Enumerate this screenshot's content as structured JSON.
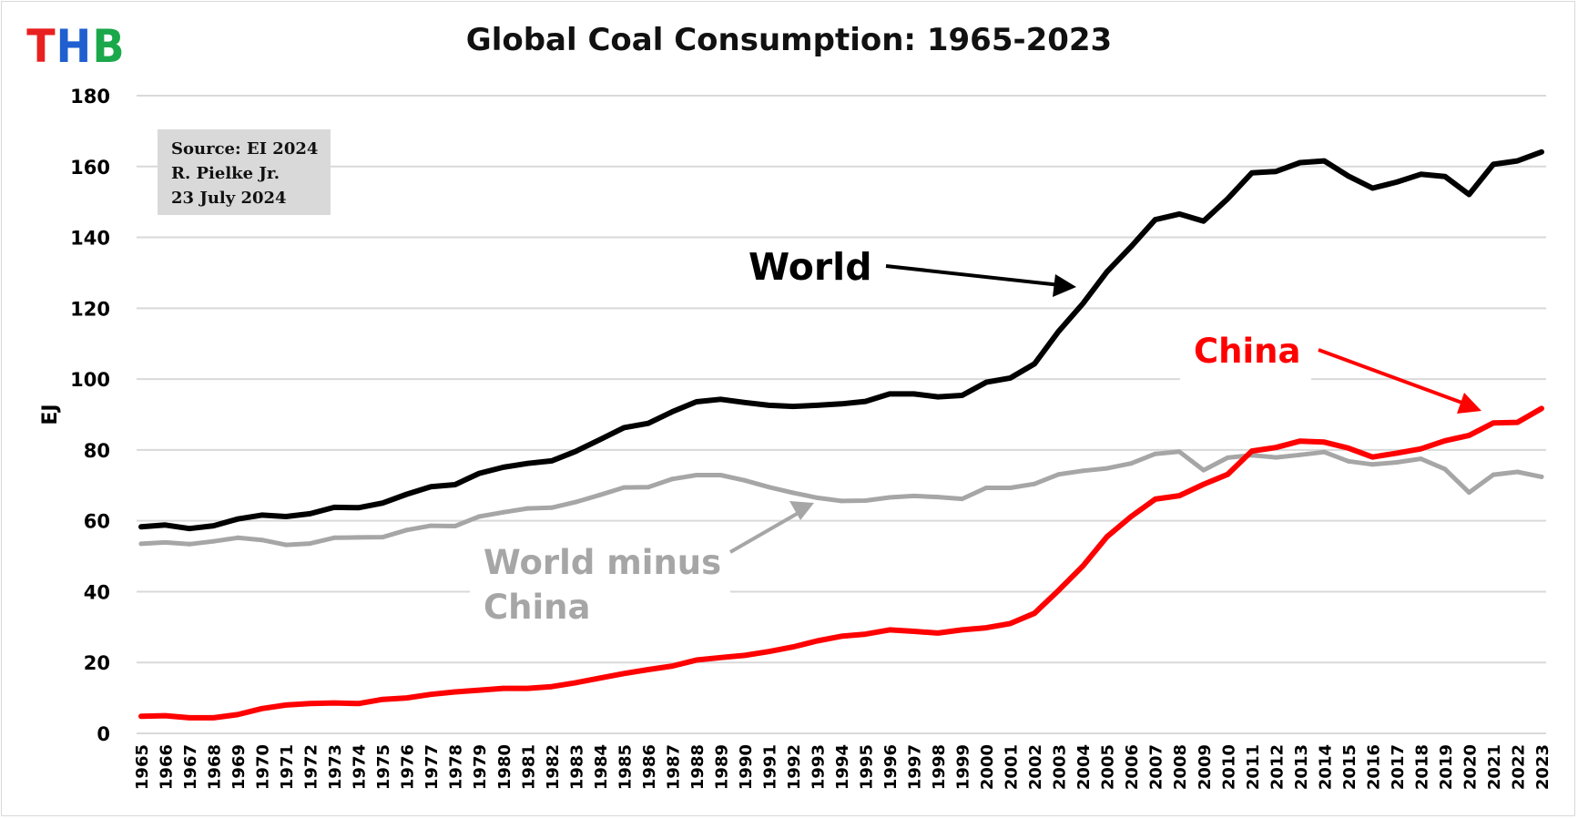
{
  "logo": {
    "letters": [
      {
        "char": "T",
        "color": "#e8201f"
      },
      {
        "char": "H",
        "color": "#1f5fd0"
      },
      {
        "char": "B",
        "color": "#1aa84a"
      }
    ]
  },
  "source_note": {
    "line1": "Source: EI 2024",
    "line2": "R. Pielke Jr.",
    "line3": "23 July 2024"
  },
  "chart_data": {
    "type": "line",
    "title": "Global Coal Consumption: 1965-2023",
    "xlabel": "",
    "ylabel": "EJ",
    "ylim": [
      0,
      180
    ],
    "yticks": [
      0,
      20,
      40,
      60,
      80,
      100,
      120,
      140,
      160,
      180
    ],
    "grid": true,
    "categories": [
      "1965",
      "1966",
      "1967",
      "1968",
      "1969",
      "1970",
      "1971",
      "1972",
      "1973",
      "1974",
      "1975",
      "1976",
      "1977",
      "1978",
      "1979",
      "1980",
      "1981",
      "1982",
      "1983",
      "1984",
      "1985",
      "1986",
      "1987",
      "1988",
      "1989",
      "1990",
      "1991",
      "1992",
      "1993",
      "1994",
      "1995",
      "1996",
      "1997",
      "1998",
      "1999",
      "2000",
      "2001",
      "2002",
      "2003",
      "2004",
      "2005",
      "2006",
      "2007",
      "2008",
      "2009",
      "2010",
      "2011",
      "2012",
      "2013",
      "2014",
      "2015",
      "2016",
      "2017",
      "2018",
      "2019",
      "2020",
      "2021",
      "2022",
      "2023"
    ],
    "series": [
      {
        "name": "World",
        "label": "World",
        "color": "#000000",
        "values": [
          58.3,
          58.8,
          57.8,
          58.6,
          60.5,
          61.6,
          61.2,
          62.0,
          63.8,
          63.7,
          65.0,
          67.5,
          69.6,
          70.2,
          73.4,
          75.1,
          76.2,
          76.9,
          79.6,
          82.9,
          86.3,
          87.5,
          90.8,
          93.6,
          94.3,
          93.4,
          92.6,
          92.3,
          92.6,
          93.0,
          93.7,
          95.8,
          95.8,
          95.0,
          95.4,
          99.1,
          100.3,
          104.3,
          113.5,
          121.3,
          130.3,
          137.4,
          145.0,
          146.6,
          144.6,
          150.9,
          158.2,
          158.6,
          161.1,
          161.6,
          157.3,
          153.9,
          155.6,
          157.8,
          157.2,
          152.1,
          160.6,
          161.6,
          164.1
        ]
      },
      {
        "name": "World minus China",
        "label_line1": "World minus",
        "label_line2": "China",
        "color": "#a6a6a6",
        "values": [
          53.5,
          53.9,
          53.4,
          54.2,
          55.2,
          54.6,
          53.2,
          53.6,
          55.2,
          55.3,
          55.4,
          57.4,
          58.6,
          58.5,
          61.2,
          62.4,
          63.5,
          63.7,
          65.3,
          67.3,
          69.4,
          69.5,
          71.8,
          72.9,
          72.9,
          71.4,
          69.5,
          67.9,
          66.5,
          65.6,
          65.7,
          66.6,
          67.0,
          66.7,
          66.2,
          69.3,
          69.3,
          70.4,
          73.1,
          74.1,
          74.8,
          76.2,
          78.9,
          79.5,
          74.3,
          77.8,
          78.5,
          77.9,
          78.6,
          79.4,
          76.8,
          75.9,
          76.5,
          77.5,
          74.6,
          68.0,
          73.0,
          73.8,
          72.4
        ]
      },
      {
        "name": "China",
        "label": "China",
        "color": "#ff0000",
        "values": [
          4.8,
          5.0,
          4.4,
          4.4,
          5.3,
          7.0,
          8.0,
          8.4,
          8.6,
          8.4,
          9.6,
          10.0,
          11.0,
          11.7,
          12.2,
          12.7,
          12.7,
          13.2,
          14.3,
          15.6,
          16.9,
          18.0,
          19.0,
          20.7,
          21.4,
          22.0,
          23.1,
          24.4,
          26.1,
          27.4,
          28.0,
          29.2,
          28.8,
          28.3,
          29.2,
          29.8,
          31.0,
          33.9,
          40.4,
          47.2,
          55.5,
          61.2,
          66.1,
          67.1,
          70.3,
          73.1,
          79.7,
          80.7,
          82.5,
          82.2,
          80.5,
          78.0,
          79.1,
          80.3,
          82.6,
          84.1,
          87.6,
          87.8,
          91.7
        ]
      }
    ],
    "annotations": [
      {
        "text": "World",
        "points_to": "World"
      },
      {
        "text": "China",
        "points_to": "China"
      },
      {
        "text": "World minus China",
        "points_to": "World minus China"
      }
    ]
  }
}
